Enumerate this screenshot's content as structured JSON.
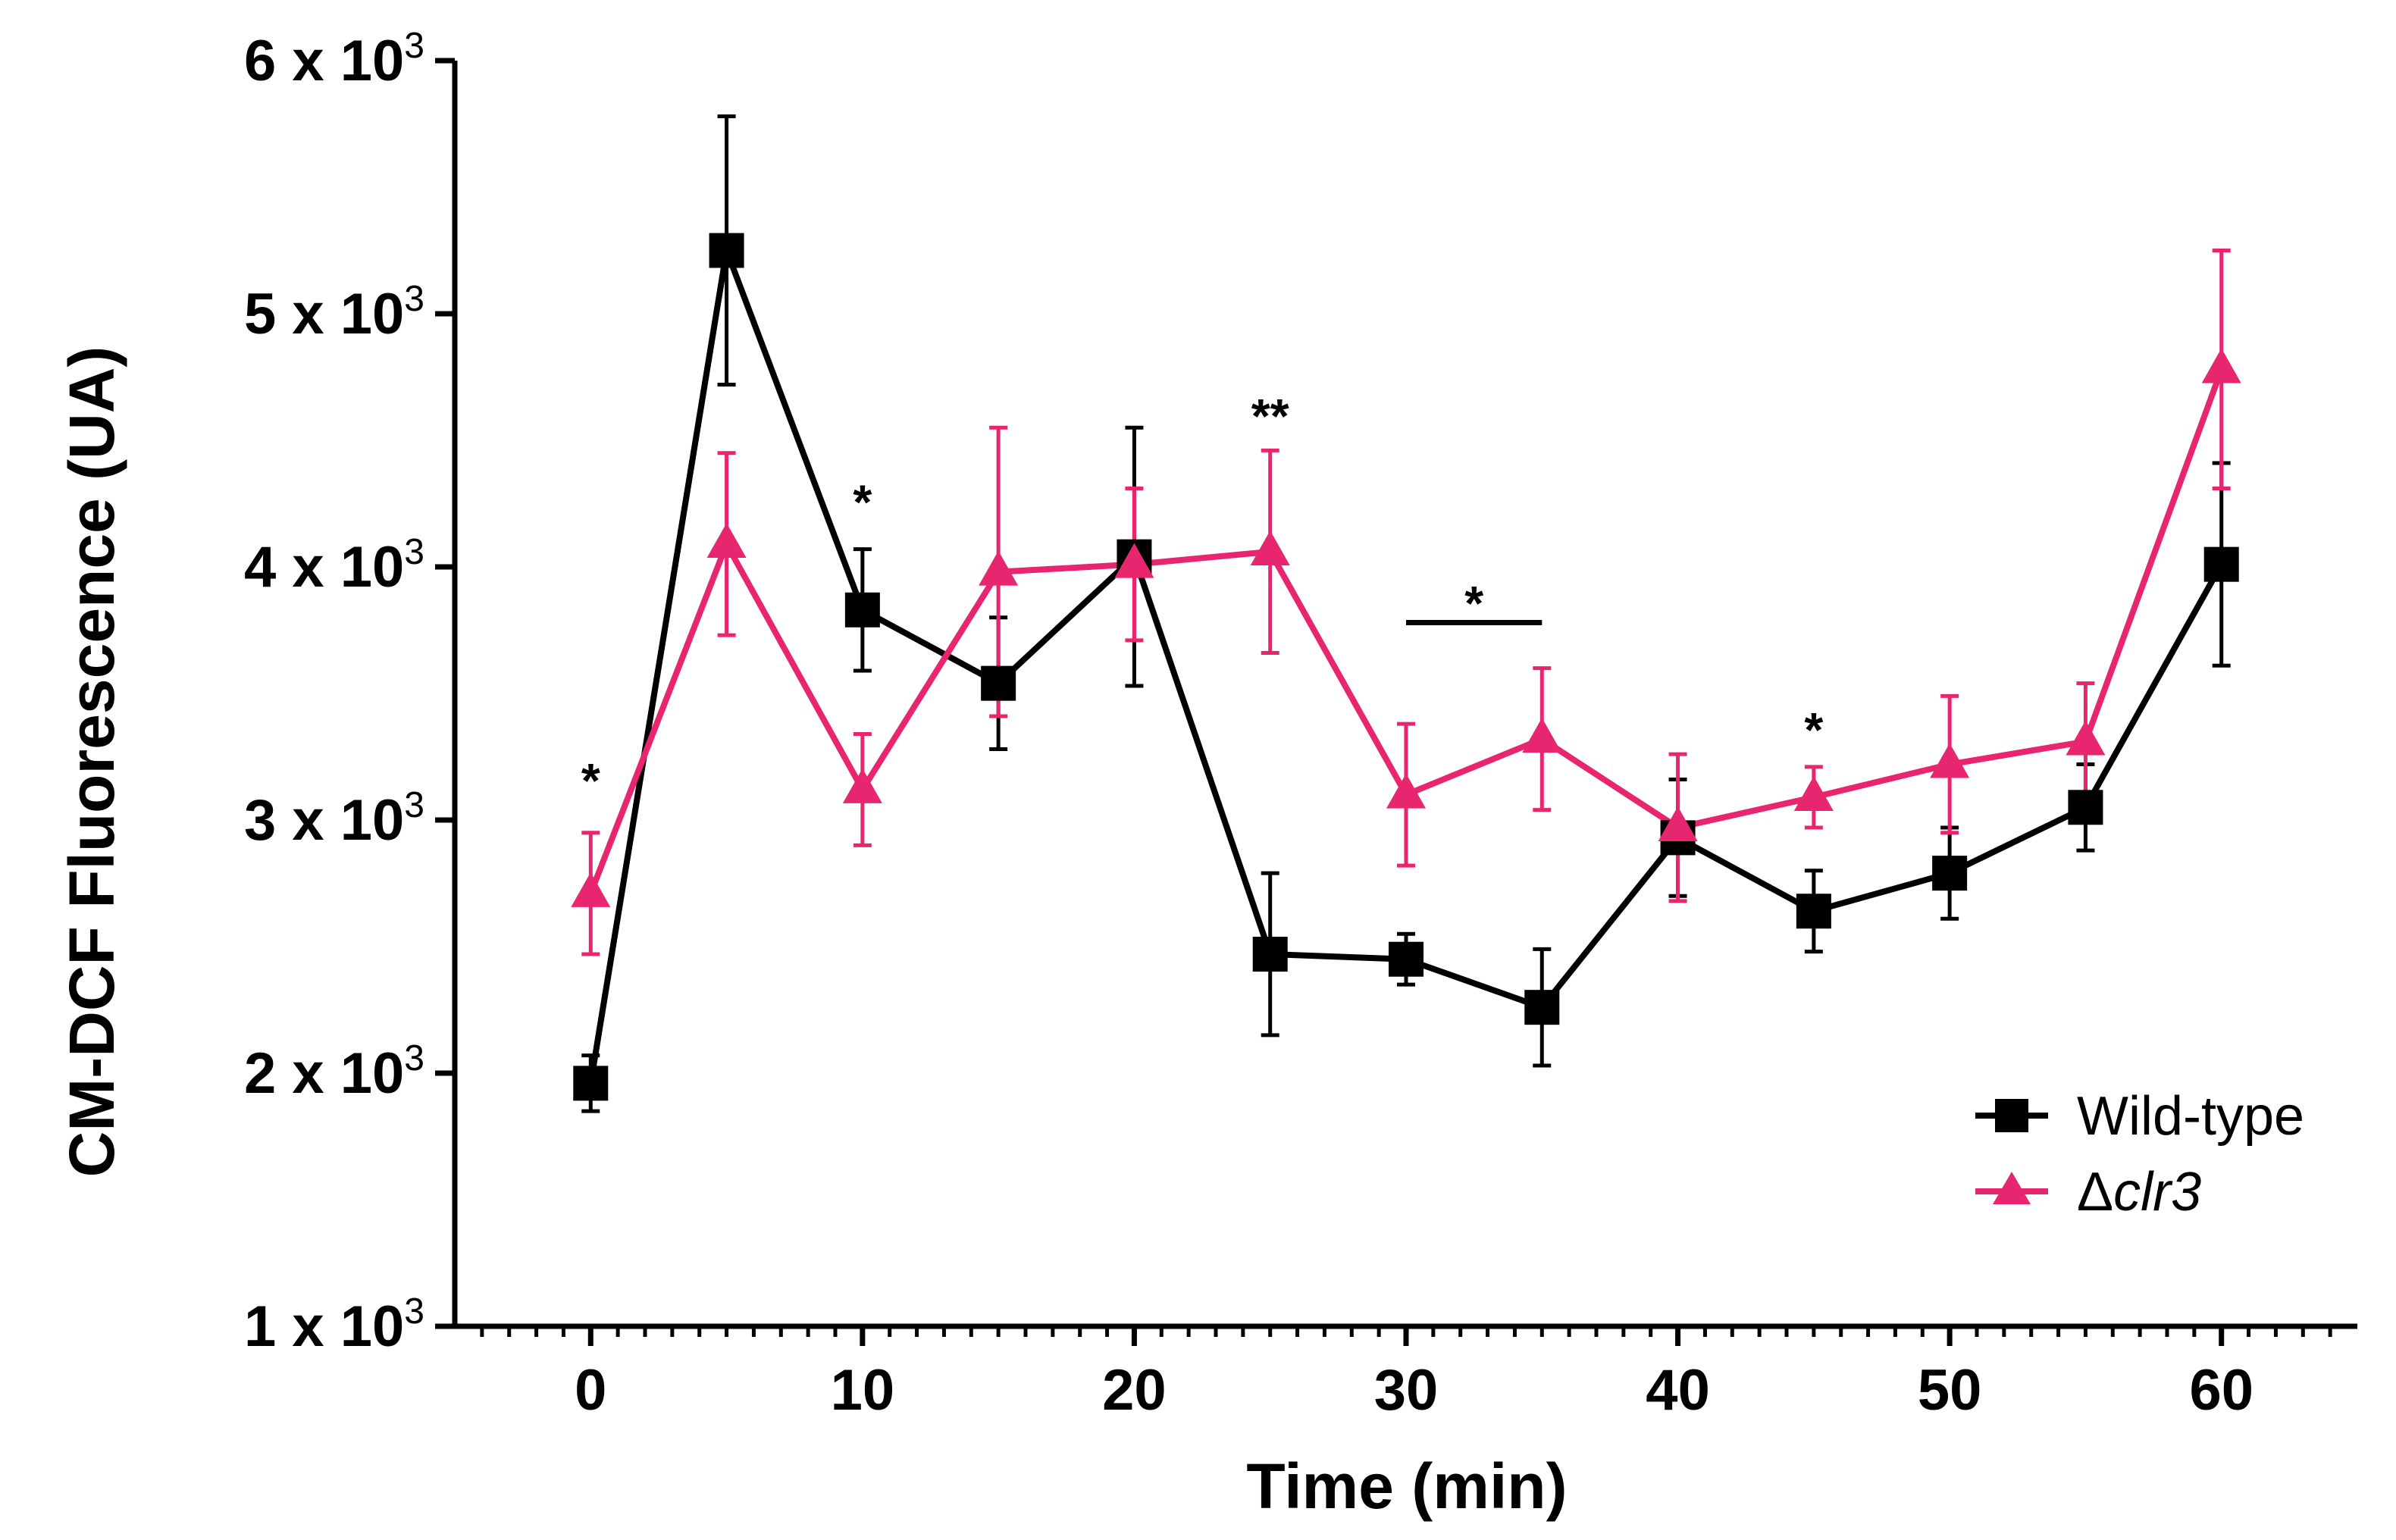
{
  "chart_data": {
    "type": "line",
    "title": "",
    "xlabel": "Time (min)",
    "ylabel": "CM-DCF Fluorescence (UA)",
    "xlim": [
      -5,
      65
    ],
    "ylim": [
      1000,
      6000
    ],
    "x_ticks": [
      0,
      10,
      20,
      30,
      40,
      50,
      60
    ],
    "x_tick_labels": [
      "0",
      "10",
      "20",
      "30",
      "40",
      "50",
      "60"
    ],
    "y_ticks": [
      1000,
      2000,
      3000,
      4000,
      5000,
      6000
    ],
    "y_tick_labels": [
      {
        "base": "1 x 10",
        "exp": "3"
      },
      {
        "base": "2 x 10",
        "exp": "3"
      },
      {
        "base": "3 x 10",
        "exp": "3"
      },
      {
        "base": "4 x 10",
        "exp": "3"
      },
      {
        "base": "5 x 10",
        "exp": "3"
      },
      {
        "base": "6 x 10",
        "exp": "3"
      }
    ],
    "grid": false,
    "legend_position": "bottom-right",
    "x": [
      0,
      5,
      10,
      15,
      20,
      25,
      30,
      35,
      40,
      45,
      50,
      55,
      60
    ],
    "series": [
      {
        "name": "Wild-type",
        "marker": "square",
        "color": "#000000",
        "values": [
          1960,
          5250,
          3830,
          3540,
          4040,
          2470,
          2450,
          2260,
          2930,
          2640,
          2790,
          3050,
          4010
        ],
        "error": [
          110,
          530,
          240,
          260,
          510,
          320,
          100,
          230,
          230,
          160,
          180,
          170,
          400
        ]
      },
      {
        "name": "Δclr3",
        "name_prefix": "Δ",
        "name_italic": "clr3",
        "marker": "triangle",
        "color": "#e8266f",
        "values": [
          2710,
          4090,
          3120,
          3980,
          4010,
          4060,
          3100,
          3320,
          2970,
          3090,
          3220,
          3310,
          4780
        ],
        "error": [
          240,
          360,
          220,
          570,
          300,
          400,
          280,
          280,
          290,
          120,
          270,
          230,
          470
        ]
      }
    ],
    "annotations": [
      {
        "text": "*",
        "x": 0,
        "y": 3180
      },
      {
        "text": "*",
        "x": 10,
        "y": 4280
      },
      {
        "text": "**",
        "x": 25,
        "y": 4620
      },
      {
        "text": "*",
        "x": 32.5,
        "y": 3880,
        "bar_from": 30,
        "bar_to": 35,
        "bar_y": 3780
      },
      {
        "text": "*",
        "x": 45,
        "y": 3380
      }
    ]
  }
}
